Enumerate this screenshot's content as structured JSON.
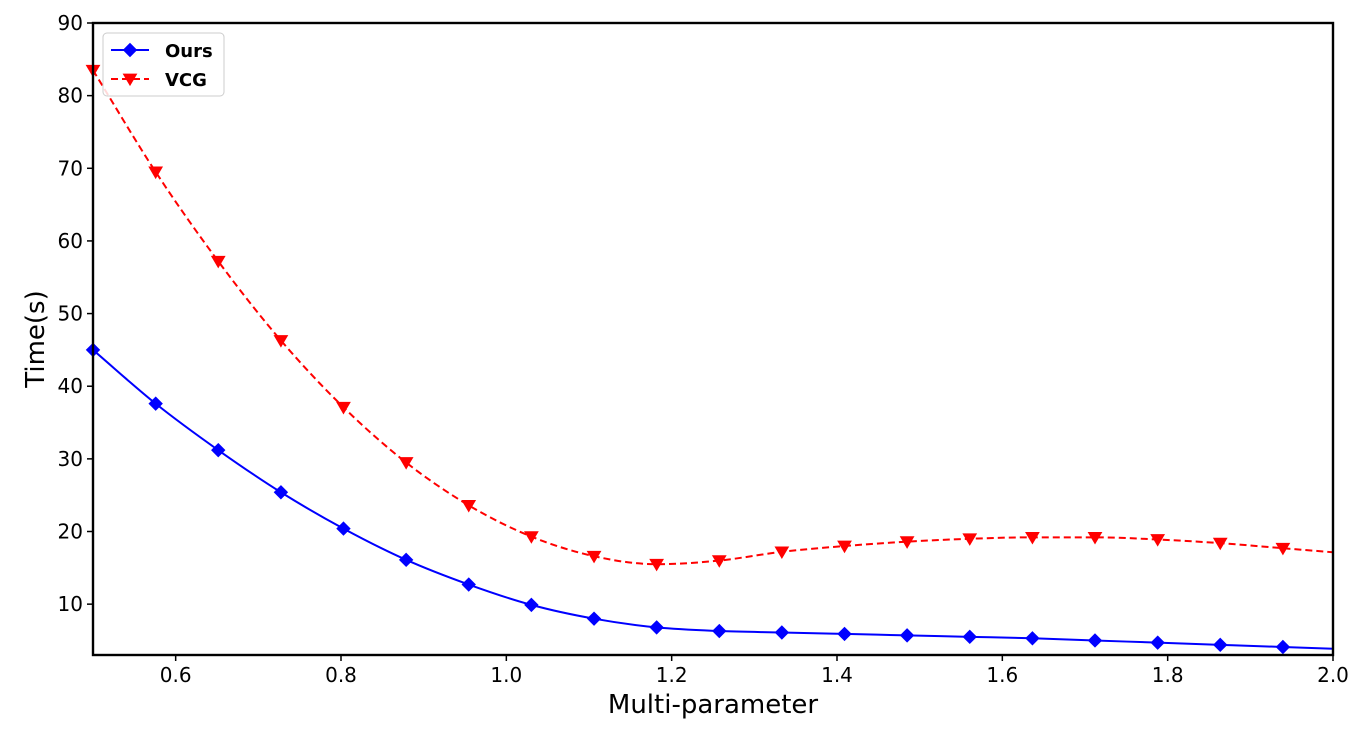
{
  "chart_data": {
    "type": "line",
    "title": "",
    "xlabel": "Multi-parameter",
    "ylabel": "Time(s)",
    "xlim": [
      0.5,
      2.0
    ],
    "ylim": [
      3,
      90
    ],
    "xticks": [
      0.6,
      0.8,
      1.0,
      1.2,
      1.4,
      1.6,
      1.8,
      2.0
    ],
    "xtick_labels": [
      "0.6",
      "0.8",
      "1.0",
      "1.2",
      "1.4",
      "1.6",
      "1.8",
      "2.0"
    ],
    "yticks": [
      10,
      20,
      30,
      40,
      50,
      60,
      70,
      80,
      90
    ],
    "ytick_labels": [
      "10",
      "20",
      "30",
      "40",
      "50",
      "60",
      "70",
      "80",
      "90"
    ],
    "grid": false,
    "legend_position": "top-left",
    "series": [
      {
        "name": "Ours",
        "color": "#0000ff",
        "line_style": "solid",
        "marker": "diamond",
        "x": [
          0.5,
          0.5758,
          0.6515,
          0.7273,
          0.803,
          0.8788,
          0.9545,
          1.0303,
          1.1061,
          1.1818,
          1.2576,
          1.3333,
          1.4091,
          1.4848,
          1.5606,
          1.6364,
          1.7121,
          1.7879,
          1.8636,
          1.9394
        ],
        "y": [
          45.0,
          37.6,
          31.2,
          25.4,
          20.4,
          16.1,
          12.7,
          9.9,
          8.0,
          6.8,
          6.3,
          6.1,
          5.9,
          5.7,
          5.5,
          5.3,
          5.0,
          4.7,
          4.4,
          4.1
        ]
      },
      {
        "name": "VCG",
        "color": "#ff0000",
        "line_style": "dashed",
        "marker": "triangle-down",
        "x": [
          0.5,
          0.5758,
          0.6515,
          0.7273,
          0.803,
          0.8788,
          0.9545,
          1.0303,
          1.1061,
          1.1818,
          1.2576,
          1.3333,
          1.4091,
          1.4848,
          1.5606,
          1.6364,
          1.7121,
          1.7879,
          1.8636,
          1.9394
        ],
        "y": [
          83.5,
          69.5,
          57.2,
          46.3,
          37.1,
          29.5,
          23.6,
          19.3,
          16.6,
          15.5,
          16.0,
          17.2,
          18.0,
          18.6,
          19.0,
          19.2,
          19.2,
          18.9,
          18.4,
          17.7
        ]
      }
    ]
  }
}
